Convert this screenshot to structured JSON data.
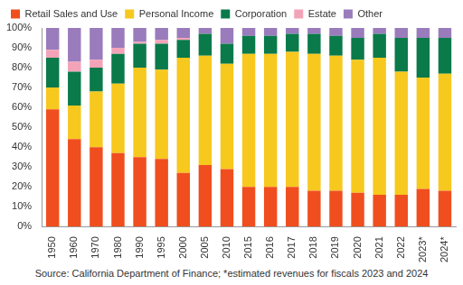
{
  "chart_data": {
    "type": "bar",
    "stacked": true,
    "grid": false,
    "legend": "top",
    "source": "Source: California Department of Finance; *estimated revenues for fiscals 2023 and 2024",
    "categories": [
      "1950",
      "1960",
      "1970",
      "1980",
      "1990",
      "1995",
      "2000",
      "2005",
      "2010",
      "2015",
      "2016",
      "2017",
      "2018",
      "2019",
      "2020",
      "2021",
      "2022",
      "2023*",
      "2024*"
    ],
    "series": [
      {
        "name": "Retail Sales and Use",
        "color": "#f04e1e",
        "values": [
          59,
          44,
          40,
          37,
          35,
          34,
          27,
          31,
          29,
          20,
          20,
          20,
          18,
          18,
          17,
          16,
          16,
          19,
          18
        ]
      },
      {
        "name": "Personal Income",
        "color": "#f7c81e",
        "values": [
          11,
          17,
          28,
          35,
          45,
          45,
          58,
          55,
          53,
          67,
          67,
          68,
          69,
          68,
          67,
          69,
          62,
          56,
          59
        ]
      },
      {
        "name": "Corporation",
        "color": "#0a7a4a",
        "values": [
          15,
          17,
          12,
          15,
          12,
          13,
          9,
          11,
          10,
          9,
          9,
          9,
          10,
          10,
          11,
          12,
          17,
          20,
          18
        ]
      },
      {
        "name": "Estate",
        "color": "#f3a3b8",
        "values": [
          4,
          5,
          4,
          3,
          1,
          2,
          1,
          0,
          0,
          0,
          0,
          0,
          0,
          0,
          0,
          0,
          0,
          0,
          0
        ]
      },
      {
        "name": "Other",
        "color": "#9a7cbc",
        "values": [
          11,
          17,
          16,
          10,
          7,
          6,
          5,
          3,
          8,
          4,
          4,
          3,
          3,
          4,
          5,
          3,
          5,
          5,
          5
        ]
      }
    ],
    "ylim": [
      0,
      100
    ],
    "yticks": [
      {
        "value": 0,
        "label": "0%"
      },
      {
        "value": 10,
        "label": "10%"
      },
      {
        "value": 20,
        "label": "20%"
      },
      {
        "value": 30,
        "label": "30%"
      },
      {
        "value": 40,
        "label": "40%"
      },
      {
        "value": 50,
        "label": "50%"
      },
      {
        "value": 60,
        "label": "60%"
      },
      {
        "value": 70,
        "label": "70%"
      },
      {
        "value": 80,
        "label": "80%"
      },
      {
        "value": 90,
        "label": "90%"
      },
      {
        "value": 100,
        "label": "100%"
      }
    ]
  }
}
